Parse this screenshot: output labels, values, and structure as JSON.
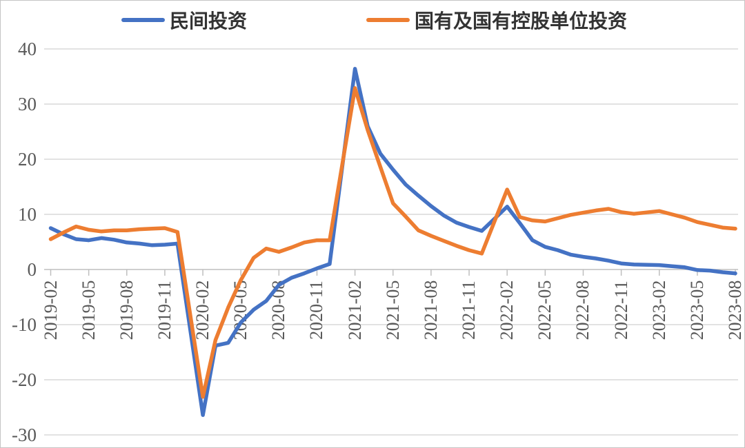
{
  "chart_data": {
    "type": "line",
    "title": "",
    "grid": true,
    "legend_position": "top",
    "ylim": [
      -30,
      40
    ],
    "y_ticks": [
      40,
      30,
      20,
      10,
      0,
      -10,
      -20,
      -30
    ],
    "x_ticks": [
      "2019-02",
      "2019-05",
      "2019-08",
      "2019-11",
      "2020-02",
      "2020-05",
      "2020-08",
      "2020-11",
      "2021-02",
      "2021-05",
      "2021-08",
      "2021-11",
      "2022-02",
      "2022-05",
      "2022-08",
      "2022-11",
      "2023-02",
      "2023-05",
      "2023-08"
    ],
    "x": [
      "2019-02",
      "2019-03",
      "2019-04",
      "2019-05",
      "2019-06",
      "2019-07",
      "2019-08",
      "2019-09",
      "2019-10",
      "2019-11",
      "2019-12",
      "2020-02",
      "2020-03",
      "2020-04",
      "2020-05",
      "2020-06",
      "2020-07",
      "2020-08",
      "2020-09",
      "2020-10",
      "2020-11",
      "2020-12",
      "2021-02",
      "2021-03",
      "2021-04",
      "2021-05",
      "2021-06",
      "2021-07",
      "2021-08",
      "2021-09",
      "2021-10",
      "2021-11",
      "2021-12",
      "2022-02",
      "2022-03",
      "2022-04",
      "2022-05",
      "2022-06",
      "2022-07",
      "2022-08",
      "2022-09",
      "2022-10",
      "2022-11",
      "2022-12",
      "2023-02",
      "2023-03",
      "2023-04",
      "2023-05",
      "2023-06",
      "2023-07",
      "2023-08"
    ],
    "series": [
      {
        "name": "民间投资",
        "color": "#4472C4",
        "values": [
          7.5,
          6.4,
          5.5,
          5.3,
          5.7,
          5.4,
          4.9,
          4.7,
          4.4,
          4.5,
          4.7,
          -26.4,
          -13.8,
          -13.3,
          -9.6,
          -7.3,
          -5.7,
          -2.8,
          -1.5,
          -0.7,
          0.2,
          1.0,
          36.4,
          26.0,
          21.0,
          18.1,
          15.4,
          13.4,
          11.5,
          9.8,
          8.5,
          7.7,
          7.0,
          11.4,
          8.4,
          5.3,
          4.1,
          3.5,
          2.7,
          2.3,
          2.0,
          1.6,
          1.1,
          0.9,
          0.8,
          0.6,
          0.4,
          -0.1,
          -0.2,
          -0.5,
          -0.7
        ]
      },
      {
        "name": "国有及国有控股单位投资",
        "color": "#ED7D31",
        "values": [
          5.5,
          6.7,
          7.8,
          7.2,
          6.9,
          7.1,
          7.1,
          7.3,
          7.4,
          7.5,
          6.8,
          -23.1,
          -12.8,
          -6.9,
          -1.9,
          2.1,
          3.8,
          3.2,
          4.0,
          4.9,
          5.3,
          5.3,
          32.9,
          25.3,
          18.6,
          12.0,
          9.6,
          7.1,
          6.1,
          5.2,
          4.3,
          3.5,
          2.9,
          14.5,
          9.5,
          8.9,
          8.7,
          9.3,
          9.9,
          10.3,
          10.7,
          11.0,
          10.4,
          10.1,
          10.6,
          10.0,
          9.4,
          8.6,
          8.1,
          7.6,
          7.4
        ]
      }
    ]
  },
  "colors": {
    "grid": "#d9d9d9",
    "axis": "#bfbfbf",
    "axis_text": "#595959",
    "legend_text": "#333333",
    "background": "#ffffff",
    "border": "#c4c4c4"
  }
}
